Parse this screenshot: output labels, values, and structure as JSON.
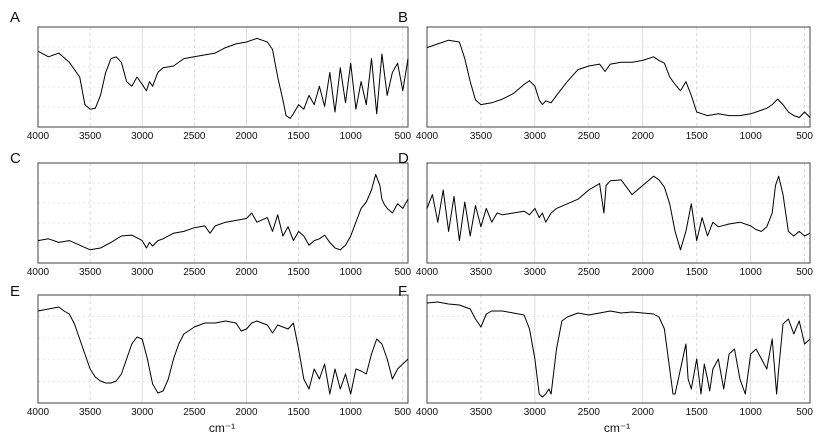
{
  "chart_data": [
    {
      "panel": "A",
      "type": "line",
      "xlim": [
        4000,
        450
      ],
      "xticks": [
        4000,
        3500,
        3000,
        2500,
        2000,
        1500,
        1000,
        500
      ],
      "xlabel": "",
      "ylabel": "",
      "grid": true,
      "x": [
        4000,
        3900,
        3800,
        3700,
        3600,
        3550,
        3500,
        3450,
        3400,
        3350,
        3300,
        3250,
        3200,
        3150,
        3100,
        3050,
        3000,
        2960,
        2930,
        2900,
        2850,
        2800,
        2700,
        2600,
        2500,
        2400,
        2300,
        2200,
        2100,
        2000,
        1950,
        1900,
        1850,
        1800,
        1750,
        1700,
        1650,
        1620,
        1580,
        1550,
        1500,
        1450,
        1400,
        1350,
        1300,
        1250,
        1200,
        1150,
        1100,
        1050,
        1000,
        950,
        900,
        850,
        800,
        750,
        700,
        650,
        600,
        550,
        500,
        450
      ],
      "y": [
        0.78,
        0.72,
        0.76,
        0.66,
        0.5,
        0.2,
        0.15,
        0.16,
        0.3,
        0.55,
        0.7,
        0.72,
        0.66,
        0.45,
        0.4,
        0.5,
        0.42,
        0.35,
        0.45,
        0.4,
        0.55,
        0.6,
        0.62,
        0.7,
        0.72,
        0.74,
        0.76,
        0.82,
        0.86,
        0.88,
        0.9,
        0.92,
        0.9,
        0.88,
        0.8,
        0.5,
        0.25,
        0.08,
        0.05,
        0.1,
        0.2,
        0.15,
        0.3,
        0.2,
        0.4,
        0.18,
        0.55,
        0.12,
        0.6,
        0.22,
        0.65,
        0.15,
        0.45,
        0.2,
        0.7,
        0.1,
        0.75,
        0.3,
        0.55,
        0.65,
        0.35,
        0.7
      ]
    },
    {
      "panel": "B",
      "type": "line",
      "xlim": [
        4000,
        450
      ],
      "xticks": [
        4000,
        3500,
        3000,
        2500,
        2000,
        1500,
        1000,
        500
      ],
      "xlabel": "",
      "ylabel": "",
      "grid": true,
      "x": [
        4000,
        3900,
        3800,
        3700,
        3650,
        3600,
        3550,
        3500,
        3400,
        3300,
        3200,
        3100,
        3050,
        3000,
        2960,
        2930,
        2900,
        2850,
        2800,
        2700,
        2600,
        2500,
        2400,
        2350,
        2300,
        2200,
        2100,
        2000,
        1950,
        1900,
        1850,
        1800,
        1750,
        1700,
        1650,
        1600,
        1550,
        1500,
        1450,
        1400,
        1300,
        1200,
        1100,
        1000,
        950,
        900,
        850,
        800,
        750,
        700,
        650,
        600,
        550,
        500,
        450
      ],
      "y": [
        0.82,
        0.86,
        0.9,
        0.88,
        0.7,
        0.45,
        0.25,
        0.2,
        0.22,
        0.26,
        0.32,
        0.42,
        0.46,
        0.4,
        0.25,
        0.2,
        0.24,
        0.22,
        0.3,
        0.45,
        0.58,
        0.62,
        0.64,
        0.56,
        0.64,
        0.66,
        0.66,
        0.68,
        0.7,
        0.72,
        0.68,
        0.65,
        0.5,
        0.42,
        0.35,
        0.45,
        0.3,
        0.12,
        0.1,
        0.08,
        0.1,
        0.08,
        0.08,
        0.1,
        0.12,
        0.14,
        0.16,
        0.2,
        0.26,
        0.2,
        0.12,
        0.08,
        0.06,
        0.12,
        0.06
      ]
    },
    {
      "panel": "C",
      "type": "line",
      "xlim": [
        4000,
        450
      ],
      "xticks": [
        4000,
        3500,
        3000,
        2500,
        2000,
        1500,
        1000,
        500
      ],
      "xlabel": "",
      "ylabel": "",
      "grid": true,
      "x": [
        4000,
        3900,
        3800,
        3700,
        3600,
        3500,
        3400,
        3300,
        3200,
        3100,
        3000,
        2960,
        2930,
        2900,
        2850,
        2800,
        2700,
        2600,
        2500,
        2400,
        2350,
        2300,
        2200,
        2100,
        2000,
        1950,
        1900,
        1800,
        1750,
        1700,
        1650,
        1600,
        1550,
        1500,
        1450,
        1400,
        1350,
        1300,
        1250,
        1200,
        1150,
        1100,
        1050,
        1000,
        950,
        900,
        850,
        800,
        760,
        720,
        700,
        680,
        650,
        600,
        550,
        500,
        450
      ],
      "y": [
        0.2,
        0.22,
        0.18,
        0.2,
        0.15,
        0.1,
        0.12,
        0.18,
        0.25,
        0.26,
        0.2,
        0.12,
        0.18,
        0.14,
        0.2,
        0.22,
        0.28,
        0.3,
        0.34,
        0.36,
        0.28,
        0.36,
        0.4,
        0.42,
        0.44,
        0.5,
        0.4,
        0.45,
        0.3,
        0.48,
        0.25,
        0.35,
        0.2,
        0.3,
        0.25,
        0.15,
        0.2,
        0.22,
        0.26,
        0.18,
        0.12,
        0.1,
        0.15,
        0.25,
        0.4,
        0.55,
        0.62,
        0.75,
        0.92,
        0.8,
        0.65,
        0.6,
        0.55,
        0.5,
        0.6,
        0.55,
        0.65
      ]
    },
    {
      "panel": "D",
      "type": "line",
      "xlim": [
        4000,
        450
      ],
      "xticks": [
        4000,
        3500,
        3000,
        2500,
        2000,
        1500,
        1000,
        500
      ],
      "xlabel": "",
      "ylabel": "",
      "grid": true,
      "x": [
        4000,
        3950,
        3900,
        3850,
        3800,
        3750,
        3700,
        3650,
        3600,
        3550,
        3500,
        3450,
        3400,
        3350,
        3300,
        3200,
        3100,
        3050,
        3000,
        2960,
        2930,
        2900,
        2850,
        2800,
        2700,
        2600,
        2500,
        2400,
        2360,
        2340,
        2300,
        2200,
        2100,
        2000,
        1950,
        1900,
        1850,
        1800,
        1750,
        1700,
        1650,
        1600,
        1550,
        1500,
        1450,
        1400,
        1350,
        1300,
        1200,
        1100,
        1000,
        950,
        900,
        850,
        800,
        770,
        740,
        700,
        650,
        600,
        550,
        500,
        450
      ],
      "y": [
        0.55,
        0.7,
        0.4,
        0.75,
        0.3,
        0.68,
        0.2,
        0.62,
        0.25,
        0.58,
        0.35,
        0.55,
        0.4,
        0.5,
        0.48,
        0.5,
        0.52,
        0.48,
        0.55,
        0.45,
        0.5,
        0.4,
        0.5,
        0.55,
        0.6,
        0.65,
        0.75,
        0.82,
        0.5,
        0.8,
        0.85,
        0.86,
        0.7,
        0.8,
        0.85,
        0.9,
        0.86,
        0.78,
        0.6,
        0.3,
        0.1,
        0.3,
        0.6,
        0.2,
        0.45,
        0.25,
        0.4,
        0.35,
        0.38,
        0.4,
        0.36,
        0.32,
        0.3,
        0.35,
        0.5,
        0.8,
        0.9,
        0.7,
        0.3,
        0.25,
        0.3,
        0.25,
        0.28
      ]
    },
    {
      "panel": "E",
      "type": "line",
      "xlim": [
        4000,
        450
      ],
      "xticks": [
        4000,
        3500,
        3000,
        2500,
        2000,
        1500,
        1000,
        500
      ],
      "xlabel": "",
      "ylabel": "",
      "grid": true,
      "x": [
        4000,
        3900,
        3800,
        3750,
        3700,
        3650,
        3600,
        3550,
        3500,
        3450,
        3400,
        3350,
        3300,
        3250,
        3200,
        3150,
        3100,
        3050,
        3000,
        2950,
        2900,
        2850,
        2800,
        2750,
        2700,
        2650,
        2600,
        2500,
        2400,
        2300,
        2200,
        2100,
        2050,
        2000,
        1950,
        1900,
        1800,
        1750,
        1700,
        1650,
        1600,
        1550,
        1500,
        1450,
        1400,
        1350,
        1300,
        1250,
        1200,
        1150,
        1100,
        1050,
        1000,
        950,
        900,
        850,
        800,
        750,
        700,
        650,
        600,
        550,
        500,
        450
      ],
      "y": [
        0.88,
        0.9,
        0.92,
        0.88,
        0.85,
        0.75,
        0.6,
        0.45,
        0.3,
        0.22,
        0.18,
        0.16,
        0.16,
        0.18,
        0.25,
        0.4,
        0.55,
        0.62,
        0.6,
        0.4,
        0.15,
        0.06,
        0.08,
        0.2,
        0.4,
        0.55,
        0.65,
        0.72,
        0.76,
        0.76,
        0.78,
        0.76,
        0.68,
        0.7,
        0.76,
        0.78,
        0.74,
        0.66,
        0.74,
        0.72,
        0.7,
        0.76,
        0.5,
        0.2,
        0.1,
        0.3,
        0.2,
        0.35,
        0.05,
        0.3,
        0.1,
        0.25,
        0.05,
        0.3,
        0.28,
        0.25,
        0.45,
        0.6,
        0.55,
        0.4,
        0.2,
        0.3,
        0.35,
        0.4
      ]
    },
    {
      "panel": "F",
      "type": "line",
      "xlim": [
        4000,
        450
      ],
      "xticks": [
        4000,
        3500,
        3000,
        2500,
        2000,
        1500,
        1000,
        500
      ],
      "xlabel": "cm-1",
      "ylabel": "",
      "grid": true,
      "x": [
        4000,
        3900,
        3800,
        3700,
        3600,
        3550,
        3500,
        3450,
        3400,
        3300,
        3200,
        3100,
        3050,
        3000,
        2960,
        2930,
        2900,
        2870,
        2850,
        2800,
        2750,
        2700,
        2600,
        2500,
        2400,
        2300,
        2200,
        2100,
        2000,
        1900,
        1850,
        1800,
        1750,
        1720,
        1700,
        1650,
        1600,
        1580,
        1550,
        1500,
        1460,
        1430,
        1400,
        1380,
        1350,
        1300,
        1250,
        1200,
        1150,
        1100,
        1050,
        1000,
        950,
        900,
        850,
        800,
        760,
        740,
        700,
        650,
        600,
        550,
        500,
        450
      ],
      "y": [
        0.96,
        0.97,
        0.95,
        0.94,
        0.9,
        0.8,
        0.72,
        0.85,
        0.88,
        0.88,
        0.86,
        0.84,
        0.7,
        0.4,
        0.05,
        0.02,
        0.05,
        0.1,
        0.05,
        0.5,
        0.78,
        0.82,
        0.86,
        0.84,
        0.86,
        0.88,
        0.86,
        0.87,
        0.86,
        0.85,
        0.82,
        0.7,
        0.3,
        0.05,
        0.05,
        0.3,
        0.55,
        0.2,
        0.1,
        0.4,
        0.05,
        0.35,
        0.2,
        0.08,
        0.3,
        0.4,
        0.1,
        0.45,
        0.5,
        0.2,
        0.05,
        0.45,
        0.5,
        0.4,
        0.3,
        0.6,
        0.05,
        0.3,
        0.75,
        0.8,
        0.65,
        0.78,
        0.55,
        0.6
      ]
    }
  ],
  "figure": {
    "xlabel": "cm⁻¹"
  }
}
